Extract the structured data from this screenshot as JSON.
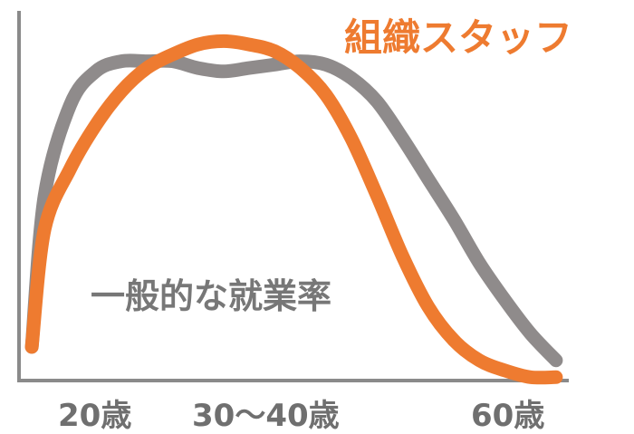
{
  "chart_data": {
    "type": "line",
    "title": "",
    "xlabel": "",
    "ylabel": "",
    "tick_labels": [
      "20歳",
      "30〜40歳",
      "60歳"
    ],
    "series": [
      {
        "name": "一般的な就業率",
        "color": "#8f8b8b",
        "x": [
          21,
          22,
          24,
          26,
          28,
          30,
          32,
          34,
          36,
          38,
          40,
          42,
          44,
          46,
          48,
          50,
          52,
          54,
          56,
          58,
          60,
          62
        ],
        "values": [
          10,
          55,
          82,
          92,
          95,
          95,
          95,
          93,
          92,
          93,
          94,
          95,
          94,
          90,
          83,
          72,
          60,
          48,
          35,
          24,
          14,
          6
        ]
      },
      {
        "name": "組織スタッフ",
        "color": "#ee7b30",
        "x": [
          21,
          22,
          24,
          26,
          28,
          30,
          32,
          34,
          36,
          38,
          40,
          42,
          44,
          46,
          48,
          50,
          52,
          54,
          56,
          58,
          60,
          62
        ],
        "values": [
          10,
          45,
          63,
          76,
          86,
          93,
          97,
          100,
          101,
          100,
          98,
          93,
          85,
          72,
          55,
          37,
          22,
          12,
          6,
          3,
          1,
          1
        ]
      }
    ],
    "xlim": [
      20,
      63
    ],
    "ylim": [
      0,
      110
    ],
    "grid": false,
    "legend": "labels placed on chart"
  }
}
